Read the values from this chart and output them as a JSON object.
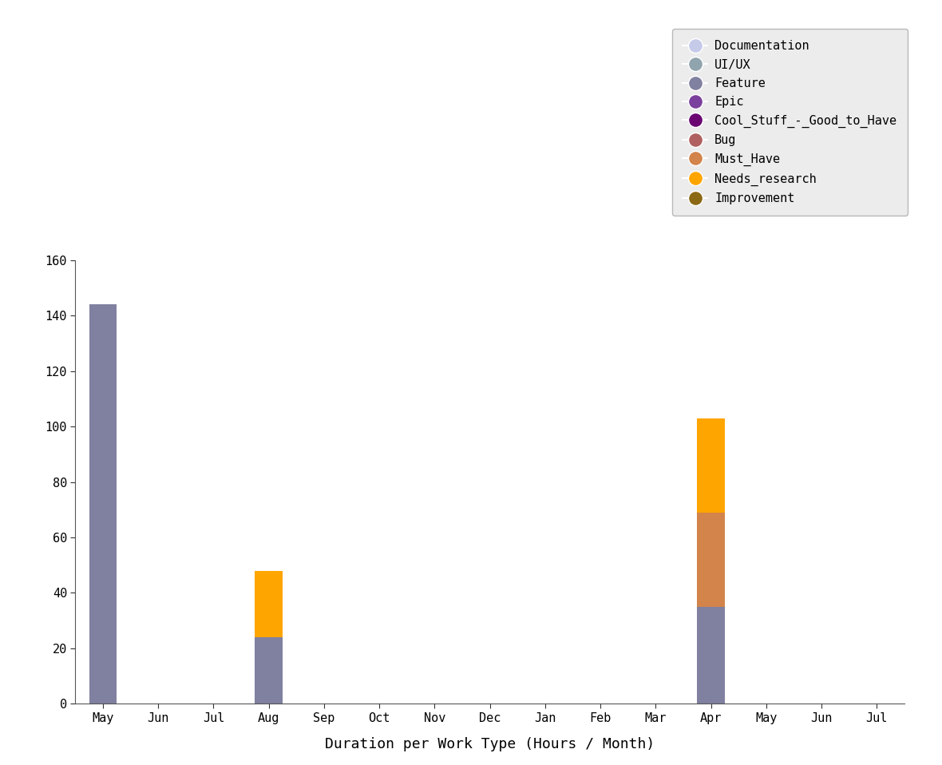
{
  "categories": [
    "May",
    "Jun",
    "Jul",
    "Aug",
    "Sep",
    "Oct",
    "Nov",
    "Dec",
    "Jan",
    "Feb",
    "Mar",
    "Apr",
    "May",
    "Jun",
    "Jul"
  ],
  "legend_labels": [
    "Documentation",
    "UI/UX",
    "Feature",
    "Epic",
    "Cool_Stuff_-_Good_to_Have",
    "Bug",
    "Must_Have",
    "Needs_research",
    "Improvement"
  ],
  "legend_colors": [
    "#c5cae9",
    "#90a4ae",
    "#8080a0",
    "#7b3f9e",
    "#6a0572",
    "#b06060",
    "#d2844a",
    "#ffa500",
    "#8b6914"
  ],
  "work_types_order": [
    "Feature",
    "Must_Have",
    "Needs_research"
  ],
  "work_types": {
    "Feature": {
      "color": "#8080a0",
      "values": [
        144,
        0,
        0,
        24,
        0,
        0,
        0,
        0,
        0,
        0,
        0,
        35,
        0,
        0,
        0
      ]
    },
    "Must_Have": {
      "color": "#d2844a",
      "values": [
        0,
        0,
        0,
        0,
        0,
        0,
        0,
        0,
        0,
        0,
        0,
        34,
        0,
        0,
        0
      ]
    },
    "Needs_research": {
      "color": "#ffa500",
      "values": [
        0,
        0,
        0,
        24,
        0,
        0,
        0,
        0,
        0,
        0,
        0,
        34,
        0,
        0,
        0
      ]
    }
  },
  "ylim": [
    0,
    160
  ],
  "yticks": [
    0,
    20,
    40,
    60,
    80,
    100,
    120,
    140,
    160
  ],
  "xlabel": "Duration per Work Type (Hours / Month)",
  "background_color": "#ffffff",
  "bar_width": 0.5,
  "font_family": "monospace",
  "font_size_ticks": 11,
  "font_size_xlabel": 13,
  "font_size_legend": 11,
  "legend_facecolor": "#e8e8e8",
  "legend_edgecolor": "#aaaaaa",
  "spine_color": "#555555",
  "tick_color": "#333333"
}
